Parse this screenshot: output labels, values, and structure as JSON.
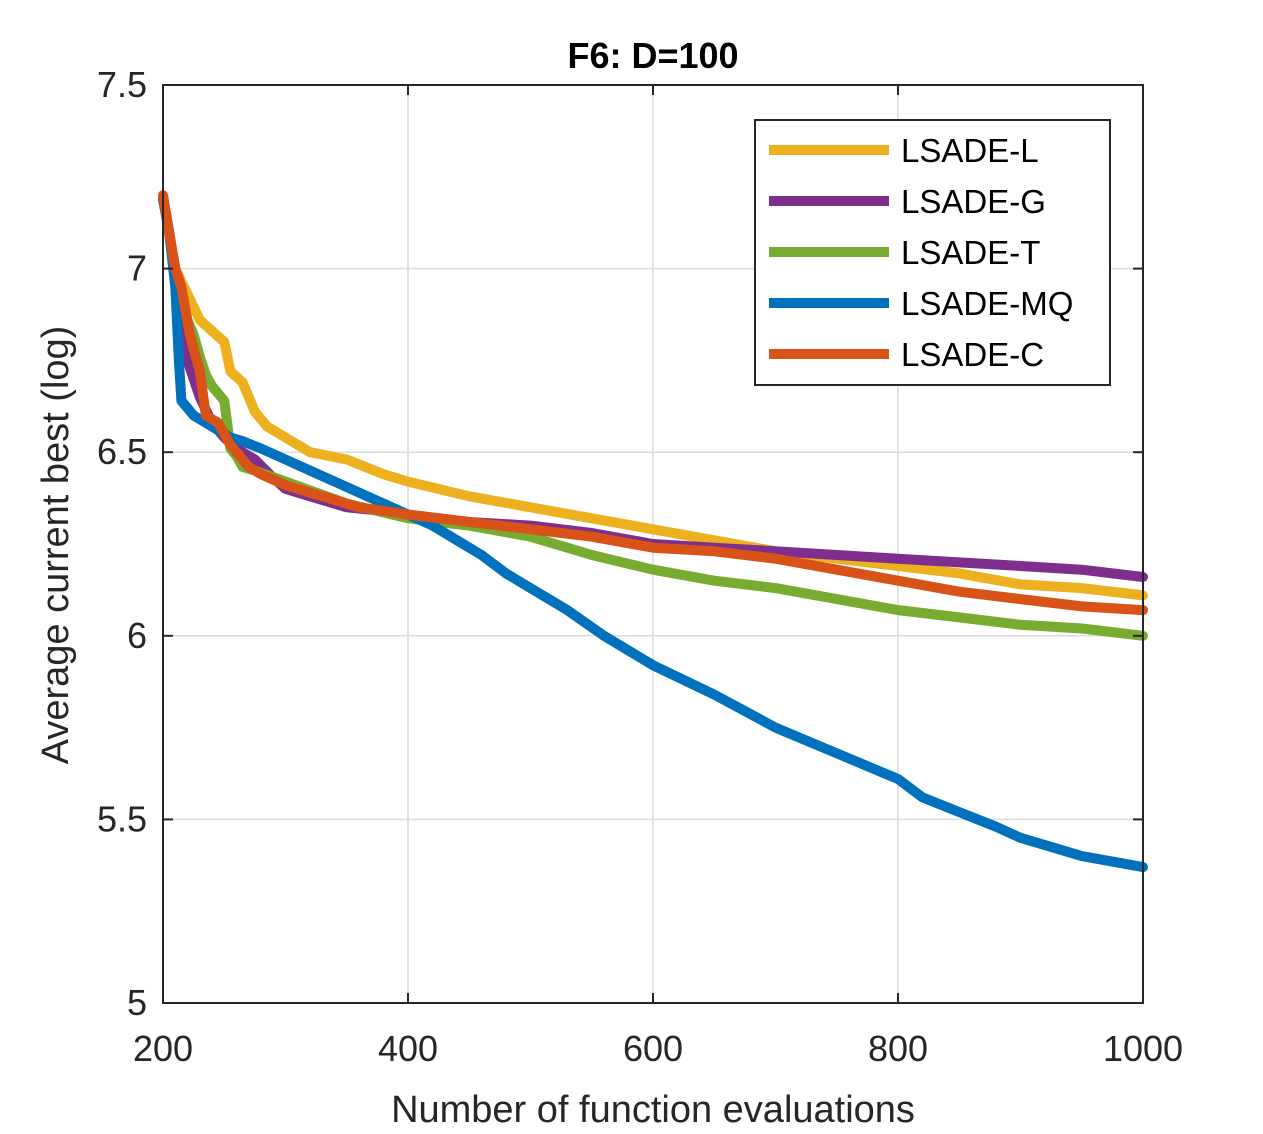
{
  "chart_data": {
    "type": "line",
    "title": "F6: D=100",
    "xlabel": "Number of function evaluations",
    "ylabel": "Average current best (log)",
    "xlim": [
      200,
      1000
    ],
    "ylim": [
      5,
      7.5
    ],
    "xticks": [
      "200",
      "400",
      "600",
      "800",
      "1000"
    ],
    "yticks": [
      "5",
      "5.5",
      "6",
      "6.5",
      "7",
      "7.5"
    ],
    "grid": true,
    "legend_position": "top-right",
    "series": [
      {
        "name": "LSADE-L",
        "color": "#EDB120",
        "x": [
          200,
          205,
          210,
          220,
          230,
          240,
          250,
          255,
          265,
          275,
          285,
          300,
          320,
          350,
          380,
          400,
          450,
          500,
          550,
          600,
          650,
          700,
          750,
          800,
          850,
          900,
          950,
          1000
        ],
        "y": [
          7.19,
          7.1,
          7.0,
          6.93,
          6.86,
          6.83,
          6.8,
          6.72,
          6.69,
          6.61,
          6.57,
          6.54,
          6.5,
          6.48,
          6.44,
          6.42,
          6.38,
          6.35,
          6.32,
          6.29,
          6.26,
          6.23,
          6.21,
          6.19,
          6.17,
          6.14,
          6.13,
          6.11
        ]
      },
      {
        "name": "LSADE-G",
        "color": "#7E2F8E",
        "x": [
          200,
          205,
          210,
          215,
          220,
          225,
          230,
          240,
          250,
          260,
          275,
          290,
          300,
          320,
          350,
          380,
          400,
          450,
          500,
          550,
          600,
          650,
          700,
          750,
          800,
          850,
          900,
          950,
          975,
          1000
        ],
        "y": [
          7.19,
          7.1,
          6.98,
          6.85,
          6.75,
          6.7,
          6.65,
          6.58,
          6.54,
          6.51,
          6.48,
          6.43,
          6.4,
          6.38,
          6.35,
          6.34,
          6.33,
          6.31,
          6.3,
          6.28,
          6.25,
          6.24,
          6.23,
          6.22,
          6.21,
          6.2,
          6.19,
          6.18,
          6.17,
          6.16
        ]
      },
      {
        "name": "LSADE-T",
        "color": "#77AC30",
        "x": [
          200,
          205,
          210,
          215,
          220,
          225,
          230,
          235,
          240,
          250,
          255,
          260,
          265,
          275,
          300,
          350,
          400,
          450,
          500,
          550,
          600,
          650,
          700,
          750,
          800,
          850,
          900,
          950,
          1000
        ],
        "y": [
          7.19,
          7.1,
          6.97,
          6.93,
          6.86,
          6.82,
          6.76,
          6.71,
          6.68,
          6.64,
          6.51,
          6.49,
          6.46,
          6.45,
          6.42,
          6.36,
          6.32,
          6.3,
          6.27,
          6.22,
          6.18,
          6.15,
          6.13,
          6.1,
          6.07,
          6.05,
          6.03,
          6.02,
          6.0
        ]
      },
      {
        "name": "LSADE-MQ",
        "color": "#0072BD",
        "x": [
          200,
          205,
          210,
          213,
          215,
          220,
          225,
          235,
          245,
          255,
          265,
          280,
          300,
          320,
          340,
          360,
          380,
          400,
          420,
          440,
          460,
          480,
          500,
          530,
          560,
          600,
          650,
          700,
          750,
          800,
          820,
          850,
          880,
          900,
          950,
          1000
        ],
        "y": [
          7.19,
          7.1,
          6.95,
          6.75,
          6.64,
          6.62,
          6.6,
          6.58,
          6.56,
          6.54,
          6.53,
          6.51,
          6.48,
          6.45,
          6.42,
          6.39,
          6.36,
          6.33,
          6.3,
          6.26,
          6.22,
          6.17,
          6.13,
          6.07,
          6.0,
          5.92,
          5.84,
          5.75,
          5.68,
          5.61,
          5.56,
          5.52,
          5.48,
          5.45,
          5.4,
          5.37
        ]
      },
      {
        "name": "LSADE-C",
        "color": "#D95319",
        "x": [
          200,
          205,
          210,
          215,
          222,
          230,
          235,
          245,
          255,
          260,
          270,
          280,
          300,
          320,
          340,
          360,
          400,
          450,
          500,
          550,
          600,
          650,
          700,
          750,
          800,
          850,
          900,
          950,
          1000
        ],
        "y": [
          7.2,
          7.1,
          7.0,
          6.95,
          6.82,
          6.72,
          6.6,
          6.58,
          6.52,
          6.5,
          6.46,
          6.44,
          6.41,
          6.39,
          6.37,
          6.35,
          6.33,
          6.31,
          6.29,
          6.27,
          6.24,
          6.23,
          6.21,
          6.18,
          6.15,
          6.12,
          6.1,
          6.08,
          6.07
        ]
      }
    ]
  }
}
